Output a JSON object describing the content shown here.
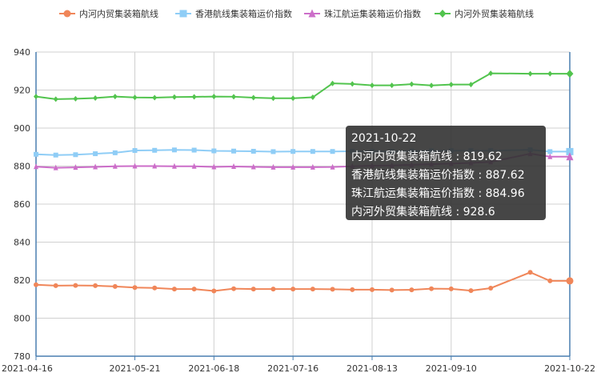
{
  "chart_data": {
    "type": "line",
    "title": "",
    "xlabel": "",
    "ylabel": "",
    "ylim": [
      780,
      940
    ],
    "yticks": [
      780,
      800,
      820,
      840,
      860,
      880,
      900,
      920,
      940
    ],
    "x_tick_labels": [
      "2021-04-16",
      "2021-05-21",
      "2021-06-18",
      "2021-07-16",
      "2021-08-13",
      "2021-09-10",
      "2021-10-22"
    ],
    "x": [
      "2021-04-16",
      "2021-04-23",
      "2021-04-30",
      "2021-05-07",
      "2021-05-14",
      "2021-05-21",
      "2021-05-28",
      "2021-06-04",
      "2021-06-11",
      "2021-06-18",
      "2021-06-25",
      "2021-07-02",
      "2021-07-09",
      "2021-07-16",
      "2021-07-23",
      "2021-07-30",
      "2021-08-06",
      "2021-08-13",
      "2021-08-20",
      "2021-08-27",
      "2021-09-03",
      "2021-09-10",
      "2021-09-17",
      "2021-09-24",
      "2021-10-08",
      "2021-10-15",
      "2021-10-22"
    ],
    "grid": true,
    "legend_position": "top",
    "series": [
      {
        "name": "内河内贸集装箱航线",
        "color": "#f08659",
        "marker": "circle",
        "values": [
          817.6,
          817.1,
          817.2,
          817.1,
          816.7,
          816.1,
          815.9,
          815.3,
          815.3,
          814.3,
          815.5,
          815.3,
          815.3,
          815.3,
          815.3,
          815.2,
          815.0,
          815.0,
          814.8,
          814.9,
          815.5,
          815.4,
          814.5,
          815.8,
          824.1,
          819.62,
          819.62
        ]
      },
      {
        "name": "香港航线集装箱运价指数",
        "color": "#8fcdf6",
        "marker": "square",
        "values": [
          886.2,
          885.8,
          886.0,
          886.5,
          887.0,
          888.2,
          888.3,
          888.5,
          888.4,
          888.0,
          887.9,
          887.8,
          887.6,
          887.7,
          887.7,
          887.7,
          887.8,
          887.8,
          887.8,
          887.9,
          888.0,
          888.1,
          888.1,
          888.1,
          888.6,
          887.62,
          887.62
        ]
      },
      {
        "name": "珠江航运集装箱运价指数",
        "color": "#cc6ec9",
        "marker": "triangle",
        "values": [
          879.7,
          879.1,
          879.3,
          879.6,
          879.9,
          880.0,
          880.0,
          879.9,
          879.9,
          879.6,
          879.8,
          879.6,
          879.4,
          879.4,
          879.4,
          879.5,
          879.9,
          880.2,
          880.3,
          880.7,
          881.0,
          881.3,
          881.7,
          882.2,
          886.5,
          884.96,
          884.96
        ]
      },
      {
        "name": "内河外贸集装箱航线",
        "color": "#52c44e",
        "marker": "diamond",
        "values": [
          916.6,
          915.2,
          915.4,
          915.8,
          916.6,
          916.1,
          916.0,
          916.3,
          916.4,
          916.6,
          916.5,
          916.0,
          915.7,
          915.7,
          916.2,
          923.5,
          923.2,
          922.5,
          922.5,
          923.1,
          922.4,
          922.9,
          922.9,
          928.8,
          928.6,
          928.6,
          928.6
        ]
      }
    ]
  },
  "tooltip": {
    "date": "2021-10-22",
    "lines": [
      "内河内贸集装箱航线 : 819.62",
      "香港航线集装箱运价指数 : 887.62",
      "珠江航运集装箱运价指数 : 884.96",
      "内河外贸集装箱航线 : 928.6"
    ]
  }
}
